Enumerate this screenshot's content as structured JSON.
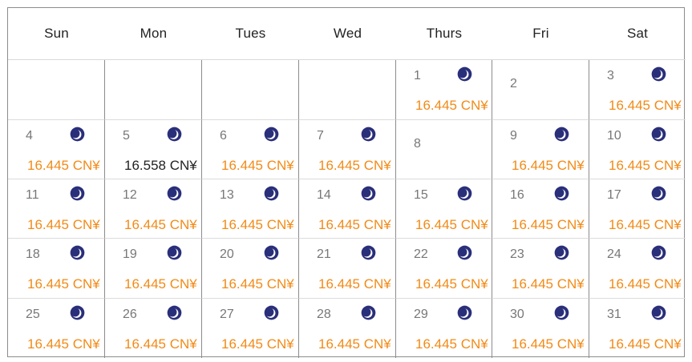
{
  "headers": [
    "Sun",
    "Mon",
    "Tues",
    "Wed",
    "Thurs",
    "Fri",
    "Sat"
  ],
  "colors": {
    "price": "#f28a16",
    "price_alt": "#222222",
    "moon": "#2a2f7a"
  },
  "icon": "crescent-moon-icon",
  "days": [
    {
      "day": "1",
      "col": 5,
      "row": 1,
      "price": "16.445 CN¥",
      "moon": true
    },
    {
      "day": "2",
      "col": 6,
      "row": 1,
      "price": "",
      "moon": false
    },
    {
      "day": "3",
      "col": 7,
      "row": 1,
      "price": "16.445 CN¥",
      "moon": true
    },
    {
      "day": "4",
      "col": 1,
      "row": 2,
      "price": "16.445 CN¥",
      "moon": true
    },
    {
      "day": "5",
      "col": 2,
      "row": 2,
      "price": "16.558 CN¥",
      "moon": true,
      "alt": true
    },
    {
      "day": "6",
      "col": 3,
      "row": 2,
      "price": "16.445 CN¥",
      "moon": true
    },
    {
      "day": "7",
      "col": 4,
      "row": 2,
      "price": "16.445 CN¥",
      "moon": true
    },
    {
      "day": "8",
      "col": 5,
      "row": 2,
      "price": "",
      "moon": false
    },
    {
      "day": "9",
      "col": 6,
      "row": 2,
      "price": "16.445 CN¥",
      "moon": true
    },
    {
      "day": "10",
      "col": 7,
      "row": 2,
      "price": "16.445 CN¥",
      "moon": true
    },
    {
      "day": "11",
      "col": 1,
      "row": 3,
      "price": "16.445 CN¥",
      "moon": true
    },
    {
      "day": "12",
      "col": 2,
      "row": 3,
      "price": "16.445 CN¥",
      "moon": true
    },
    {
      "day": "13",
      "col": 3,
      "row": 3,
      "price": "16.445 CN¥",
      "moon": true
    },
    {
      "day": "14",
      "col": 4,
      "row": 3,
      "price": "16.445 CN¥",
      "moon": true
    },
    {
      "day": "15",
      "col": 5,
      "row": 3,
      "price": "16.445 CN¥",
      "moon": true
    },
    {
      "day": "16",
      "col": 6,
      "row": 3,
      "price": "16.445 CN¥",
      "moon": true
    },
    {
      "day": "17",
      "col": 7,
      "row": 3,
      "price": "16.445 CN¥",
      "moon": true
    },
    {
      "day": "18",
      "col": 1,
      "row": 4,
      "price": "16.445 CN¥",
      "moon": true
    },
    {
      "day": "19",
      "col": 2,
      "row": 4,
      "price": "16.445 CN¥",
      "moon": true
    },
    {
      "day": "20",
      "col": 3,
      "row": 4,
      "price": "16.445 CN¥",
      "moon": true
    },
    {
      "day": "21",
      "col": 4,
      "row": 4,
      "price": "16.445 CN¥",
      "moon": true
    },
    {
      "day": "22",
      "col": 5,
      "row": 4,
      "price": "16.445 CN¥",
      "moon": true
    },
    {
      "day": "23",
      "col": 6,
      "row": 4,
      "price": "16.445 CN¥",
      "moon": true
    },
    {
      "day": "24",
      "col": 7,
      "row": 4,
      "price": "16.445 CN¥",
      "moon": true
    },
    {
      "day": "25",
      "col": 1,
      "row": 5,
      "price": "16.445 CN¥",
      "moon": true
    },
    {
      "day": "26",
      "col": 2,
      "row": 5,
      "price": "16.445 CN¥",
      "moon": true
    },
    {
      "day": "27",
      "col": 3,
      "row": 5,
      "price": "16.445 CN¥",
      "moon": true
    },
    {
      "day": "28",
      "col": 4,
      "row": 5,
      "price": "16.445 CN¥",
      "moon": true
    },
    {
      "day": "29",
      "col": 5,
      "row": 5,
      "price": "16.445 CN¥",
      "moon": true
    },
    {
      "day": "30",
      "col": 6,
      "row": 5,
      "price": "16.445 CN¥",
      "moon": true
    },
    {
      "day": "31",
      "col": 7,
      "row": 5,
      "price": "16.445 CN¥",
      "moon": true
    }
  ]
}
